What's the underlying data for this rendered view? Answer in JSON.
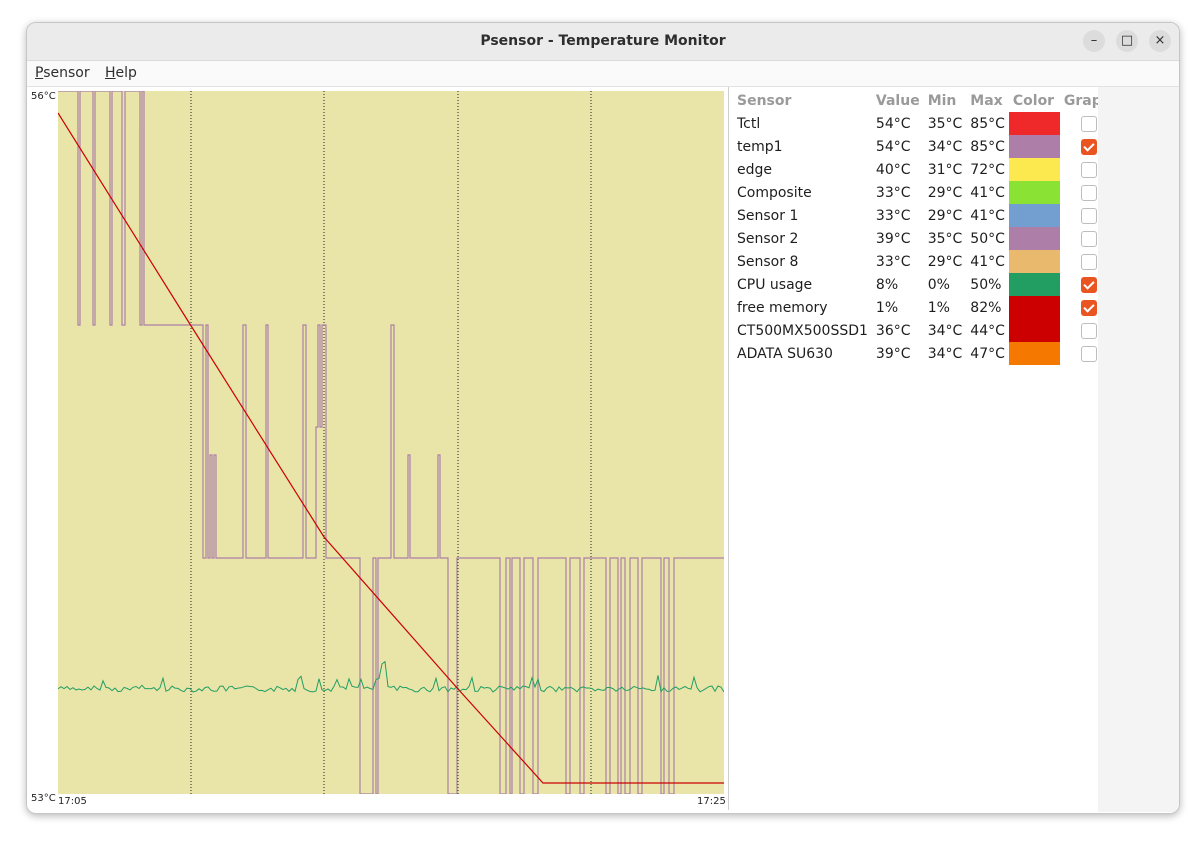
{
  "window": {
    "title": "Psensor - Temperature Monitor"
  },
  "window_controls": {
    "minimize": "–",
    "maximize": "□",
    "close": "×"
  },
  "menu": {
    "psensor_first": "P",
    "psensor_rest": "sensor",
    "help_first": "H",
    "help_rest": "elp"
  },
  "graph": {
    "y_max_label": "56°C",
    "y_min_label": "53°C",
    "x_start_label": "17:05",
    "x_end_label": "17:25",
    "background_color": "#e9e5a9"
  },
  "table": {
    "headers": {
      "sensor": "Sensor",
      "value": "Value",
      "min": "Min",
      "max": "Max",
      "color": "Color",
      "graph": "Graph"
    },
    "rows": [
      {
        "name": "Tctl",
        "value": "54°C",
        "min": "35°C",
        "max": "85°C",
        "color": "#ef2929",
        "graph": false
      },
      {
        "name": "temp1",
        "value": "54°C",
        "min": "34°C",
        "max": "85°C",
        "color": "#ad7fa8",
        "graph": true
      },
      {
        "name": "edge",
        "value": "40°C",
        "min": "31°C",
        "max": "72°C",
        "color": "#fce94f",
        "graph": false
      },
      {
        "name": "Composite",
        "value": "33°C",
        "min": "29°C",
        "max": "41°C",
        "color": "#8ae234",
        "graph": false
      },
      {
        "name": "Sensor 1",
        "value": "33°C",
        "min": "29°C",
        "max": "41°C",
        "color": "#729fcf",
        "graph": false
      },
      {
        "name": "Sensor 2",
        "value": "39°C",
        "min": "35°C",
        "max": "50°C",
        "color": "#ad7fa8",
        "graph": false
      },
      {
        "name": "Sensor 8",
        "value": "33°C",
        "min": "29°C",
        "max": "41°C",
        "color": "#e9b96e",
        "graph": false
      },
      {
        "name": "CPU usage",
        "value": "8%",
        "min": "0%",
        "max": "50%",
        "color": "#229e62",
        "graph": true
      },
      {
        "name": "free memory",
        "value": "1%",
        "min": "1%",
        "max": "82%",
        "color": "#cc0000",
        "graph": true
      },
      {
        "name": "CT500MX500SSD1",
        "value": "36°C",
        "min": "34°C",
        "max": "44°C",
        "color": "#cc0000",
        "graph": false
      },
      {
        "name": "ADATA SU630",
        "value": "39°C",
        "min": "34°C",
        "max": "47°C",
        "color": "#f57900",
        "graph": false
      }
    ]
  }
}
